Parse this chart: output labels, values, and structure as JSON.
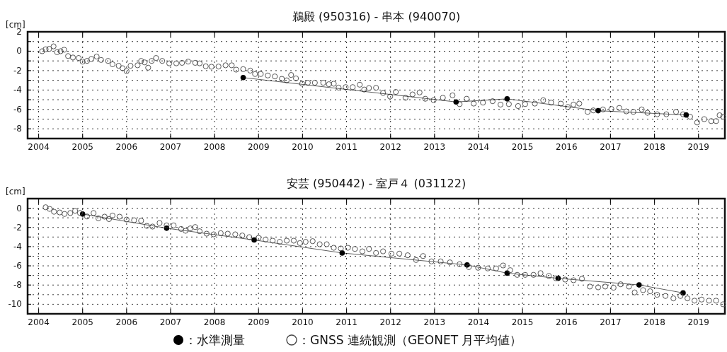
{
  "chart_data": [
    {
      "type": "scatter",
      "title": "鵜殿 (950316) - 串本 (940070)",
      "ylabel": "[cm]",
      "xlim": [
        2003.75,
        2019.6
      ],
      "ylim": [
        -9,
        2
      ],
      "xticks": [
        2004,
        2005,
        2006,
        2007,
        2008,
        2009,
        2010,
        2011,
        2012,
        2013,
        2014,
        2015,
        2016,
        2017,
        2018,
        2019
      ],
      "yticks": [
        2,
        {
          "value": 1,
          "label": null
        },
        0,
        {
          "value": -1,
          "label": null
        },
        -2,
        {
          "value": -3,
          "label": null
        },
        -4,
        {
          "value": -5,
          "label": null
        },
        -6,
        {
          "value": -7,
          "label": null
        },
        -8
      ],
      "grid": true,
      "legend": false,
      "series": [
        {
          "marker": "circle",
          "color": "#444444",
          "x": [
            2004.08,
            2004.16,
            2004.24,
            2004.34,
            2004.42,
            2004.5,
            2004.58,
            2004.67,
            2004.78,
            2004.91,
            2005.0,
            2005.1,
            2005.2,
            2005.32,
            2005.42,
            2005.58,
            2005.68,
            2005.82,
            2005.91,
            2006.0,
            2006.09,
            2006.25,
            2006.33,
            2006.41,
            2006.49,
            2006.57,
            2006.67,
            2006.81,
            2006.97,
            2007.13,
            2007.26,
            2007.4,
            2007.56,
            2007.66,
            2007.8,
            2007.93,
            2008.09,
            2008.25,
            2008.39,
            2008.49,
            2008.65,
            2008.81,
            2008.92,
            2009.05,
            2009.21,
            2009.37,
            2009.53,
            2009.64,
            2009.74,
            2009.85,
            2009.99,
            2010.12,
            2010.28,
            2010.47,
            2010.6,
            2010.71,
            2010.82,
            2010.98,
            2011.14,
            2011.3,
            2011.4,
            2011.51,
            2011.67,
            2011.83,
            2011.99,
            2012.12,
            2012.34,
            2012.5,
            2012.66,
            2012.79,
            2012.98,
            2013.19,
            2013.41,
            2013.57,
            2013.73,
            2013.89,
            2014.1,
            2014.32,
            2014.5,
            2014.69,
            2014.9,
            2015.06,
            2015.28,
            2015.47,
            2015.65,
            2015.87,
            2016.03,
            2016.16,
            2016.29,
            2016.48,
            2016.61,
            2016.83,
            2017.02,
            2017.2,
            2017.36,
            2017.52,
            2017.71,
            2017.84,
            2018.06,
            2018.27,
            2018.49,
            2018.65,
            2018.81,
            2018.97,
            2019.13,
            2019.29,
            2019.4,
            2019.48,
            2019.56
          ],
          "values": [
            0.0,
            0.2,
            0.24,
            0.5,
            -0.1,
            0.0,
            0.15,
            -0.5,
            -0.65,
            -0.7,
            -1.07,
            -1.0,
            -0.8,
            -0.55,
            -0.9,
            -1.0,
            -1.35,
            -1.5,
            -1.75,
            -2.05,
            -1.5,
            -1.45,
            -1.0,
            -1.15,
            -1.7,
            -1.0,
            -0.7,
            -1.0,
            -1.25,
            -1.25,
            -1.2,
            -1.07,
            -1.2,
            -1.25,
            -1.55,
            -1.6,
            -1.58,
            -1.45,
            -1.45,
            -1.9,
            -1.85,
            -2.0,
            -2.35,
            -2.35,
            -2.5,
            -2.6,
            -2.85,
            -3.0,
            -2.45,
            -2.8,
            -3.35,
            -3.25,
            -3.25,
            -3.25,
            -3.4,
            -3.35,
            -3.75,
            -3.7,
            -3.7,
            -3.45,
            -3.95,
            -3.8,
            -3.77,
            -4.3,
            -4.67,
            -4.2,
            -4.8,
            -4.45,
            -4.25,
            -4.9,
            -5.05,
            -4.8,
            -4.55,
            -5.45,
            -4.9,
            -5.4,
            -5.3,
            -5.15,
            -5.5,
            -5.45,
            -5.65,
            -5.45,
            -5.4,
            -5.05,
            -5.3,
            -5.4,
            -5.75,
            -5.5,
            -5.4,
            -6.25,
            -6.1,
            -6.0,
            -5.95,
            -5.85,
            -6.2,
            -6.25,
            -6.0,
            -6.35,
            -6.5,
            -6.5,
            -6.25,
            -6.5,
            -6.75,
            -7.35,
            -7.0,
            -7.2,
            -7.2,
            -6.6,
            -6.75
          ]
        },
        {
          "type": "line",
          "marker": "circle",
          "color": "#000000",
          "x": [
            2008.65,
            2013.49,
            2014.65,
            2016.72,
            2018.72
          ],
          "values": [
            -2.72,
            -5.23,
            -4.91,
            -6.13,
            -6.57
          ]
        }
      ]
    },
    {
      "type": "scatter",
      "title": "安芸 (950442) - 室戸４ (031122)",
      "ylabel": "[cm]",
      "xlim": [
        2003.75,
        2019.6
      ],
      "ylim": [
        -11,
        1
      ],
      "xticks": [
        2004,
        2005,
        2006,
        2007,
        2008,
        2009,
        2010,
        2011,
        2012,
        2013,
        2014,
        2015,
        2016,
        2017,
        2018,
        2019
      ],
      "yticks": [
        0,
        {
          "value": -1,
          "label": null
        },
        -2,
        {
          "value": -3,
          "label": null
        },
        -4,
        {
          "value": -5,
          "label": null
        },
        -6,
        {
          "value": -7,
          "label": null
        },
        -8,
        {
          "value": -9,
          "label": null
        },
        -10
      ],
      "grid": true,
      "legend": "bottom",
      "series": [
        {
          "type": "line",
          "name": "：水準測量",
          "marker": "circle",
          "color": "#000000",
          "x": [
            2005.0,
            2006.91,
            2008.9,
            2010.9,
            2013.74,
            2014.65,
            2015.81,
            2017.65,
            2018.65
          ],
          "values": [
            -0.61,
            -2.08,
            -3.31,
            -4.66,
            -5.91,
            -6.76,
            -7.3,
            -7.99,
            -8.82
          ]
        },
        {
          "name": "：GNSS 連続観測（GEONET 月平均値）",
          "marker": "circle",
          "color": "#444444",
          "x": [
            2004.16,
            2004.25,
            2004.35,
            2004.48,
            2004.59,
            2004.72,
            2004.83,
            2004.94,
            2005.1,
            2005.25,
            2005.36,
            2005.5,
            2005.6,
            2005.68,
            2005.84,
            2006.0,
            2006.17,
            2006.33,
            2006.46,
            2006.59,
            2006.75,
            2006.91,
            2007.07,
            2007.24,
            2007.34,
            2007.45,
            2007.56,
            2007.66,
            2007.82,
            2007.98,
            2008.14,
            2008.3,
            2008.47,
            2008.63,
            2008.79,
            2009.0,
            2009.16,
            2009.32,
            2009.48,
            2009.64,
            2009.8,
            2009.94,
            2010.07,
            2010.23,
            2010.39,
            2010.55,
            2010.71,
            2010.87,
            2011.03,
            2011.19,
            2011.36,
            2011.51,
            2011.67,
            2011.83,
            2012.02,
            2012.2,
            2012.39,
            2012.58,
            2012.74,
            2012.93,
            2013.14,
            2013.35,
            2013.57,
            2013.78,
            2013.99,
            2014.21,
            2014.4,
            2014.56,
            2014.72,
            2014.88,
            2015.06,
            2015.25,
            2015.41,
            2015.6,
            2015.76,
            2015.97,
            2016.16,
            2016.35,
            2016.53,
            2016.72,
            2016.88,
            2017.07,
            2017.23,
            2017.42,
            2017.55,
            2017.74,
            2017.9,
            2018.06,
            2018.25,
            2018.43,
            2018.59,
            2018.75,
            2018.91,
            2019.07,
            2019.24,
            2019.4,
            2019.56
          ],
          "values": [
            0.1,
            -0.07,
            -0.37,
            -0.44,
            -0.6,
            -0.5,
            -0.27,
            -0.49,
            -0.86,
            -0.5,
            -1.05,
            -0.88,
            -1.13,
            -0.76,
            -0.88,
            -1.18,
            -1.25,
            -1.3,
            -1.84,
            -1.91,
            -1.54,
            -1.79,
            -1.79,
            -2.16,
            -2.35,
            -2.1,
            -1.96,
            -2.4,
            -2.65,
            -2.72,
            -2.6,
            -2.65,
            -2.72,
            -2.84,
            -3.01,
            -3.09,
            -3.26,
            -3.38,
            -3.5,
            -3.38,
            -3.38,
            -3.63,
            -3.5,
            -3.43,
            -3.75,
            -3.75,
            -4.12,
            -4.19,
            -4.12,
            -4.24,
            -4.49,
            -4.24,
            -4.66,
            -4.49,
            -4.73,
            -4.73,
            -4.9,
            -5.39,
            -4.98,
            -5.54,
            -5.54,
            -5.64,
            -5.83,
            -6.13,
            -6.2,
            -6.27,
            -6.27,
            -5.96,
            -6.45,
            -6.94,
            -6.94,
            -6.94,
            -6.76,
            -7.06,
            -7.3,
            -7.43,
            -7.5,
            -7.35,
            -8.16,
            -8.24,
            -8.16,
            -8.28,
            -7.92,
            -8.16,
            -8.77,
            -8.53,
            -8.65,
            -9.02,
            -9.14,
            -9.39,
            -9.14,
            -9.39,
            -9.63,
            -9.51,
            -9.63,
            -9.63,
            -10.0
          ]
        }
      ]
    }
  ]
}
